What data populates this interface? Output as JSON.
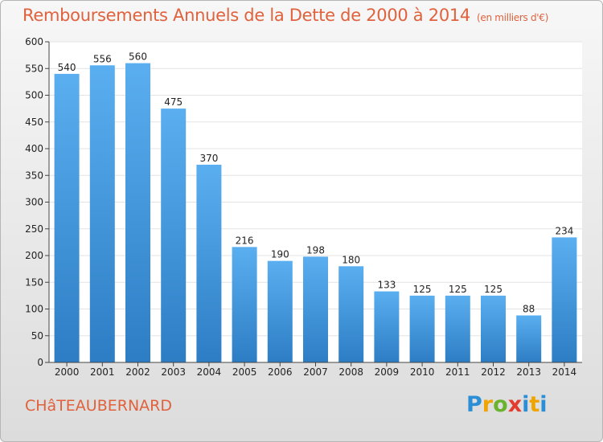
{
  "header": {
    "title": "Remboursements Annuels de la Dette de 2000 à 2014",
    "unit": "(en milliers d'€)"
  },
  "footer": {
    "commune": "CHâTEAUBERNARD",
    "logo": {
      "text": "Proxiti",
      "letters": [
        "P",
        "r",
        "o",
        "x",
        "i",
        "t",
        "i"
      ],
      "colors": [
        "#2c8fd6",
        "#f0a400",
        "#6bb32e",
        "#e33b2f",
        "#2c8fd6",
        "#f0a400",
        "#2c8fd6"
      ]
    }
  },
  "colors": {
    "title": "#e0623d",
    "bar_top": "#5aaff0",
    "bar_bottom": "#2d7dc4",
    "grid": "#e3e3e3",
    "axis": "#444444"
  },
  "chart_data": {
    "type": "bar",
    "title": "Remboursements Annuels de la Dette de 2000 à 2014",
    "subtitle": "(en milliers d'€)",
    "categories": [
      "2000",
      "2001",
      "2002",
      "2003",
      "2004",
      "2005",
      "2006",
      "2007",
      "2008",
      "2009",
      "2010",
      "2011",
      "2012",
      "2013",
      "2014"
    ],
    "values": [
      540,
      556,
      560,
      475,
      370,
      216,
      190,
      198,
      180,
      133,
      125,
      125,
      125,
      88,
      234
    ],
    "ylim": [
      0,
      600
    ],
    "yticks": [
      0,
      50,
      100,
      150,
      200,
      250,
      300,
      350,
      400,
      450,
      500,
      550,
      600
    ],
    "grid": true,
    "xlabel": "",
    "ylabel": ""
  }
}
